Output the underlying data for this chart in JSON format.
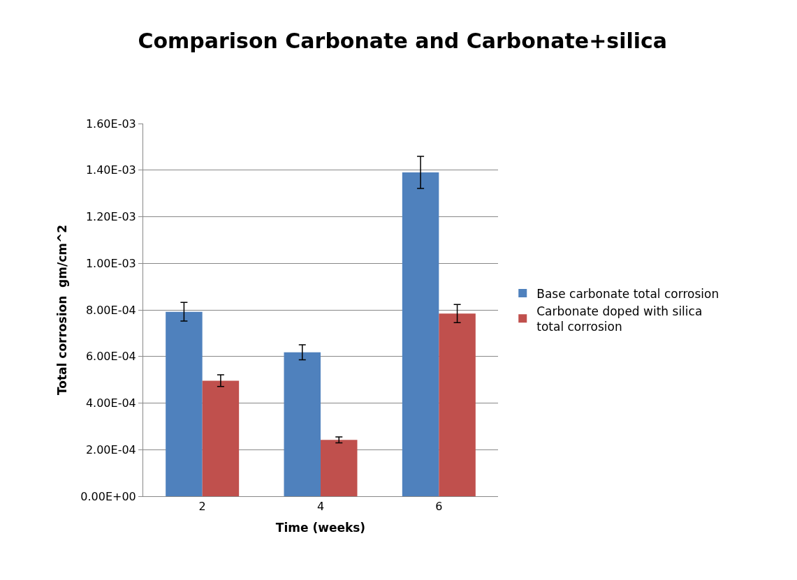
{
  "chart_data": {
    "type": "bar",
    "title": "Comparison Carbonate and Carbonate+silica",
    "xlabel": "Time (weeks)",
    "ylabel": "Total corrosion  gm/cm^2",
    "categories": [
      "2",
      "4",
      "6"
    ],
    "series": [
      {
        "name": "Base carbonate total corrosion",
        "color": "#4f81bd",
        "values": [
          0.000792,
          0.000618,
          0.00139
        ],
        "errors": [
          4e-05,
          3.2e-05,
          6.9e-05
        ]
      },
      {
        "name": "Carbonate doped with silica total corrosion",
        "color": "#c0504d",
        "values": [
          0.000496,
          0.000242,
          0.000784
        ],
        "errors": [
          2.5e-05,
          1.3e-05,
          3.9e-05
        ]
      }
    ],
    "ylim": [
      0,
      0.0016
    ],
    "yticks": [
      {
        "value": 0,
        "label": "0.00E+00"
      },
      {
        "value": 0.0002,
        "label": "2.00E-04"
      },
      {
        "value": 0.0004,
        "label": "4.00E-04"
      },
      {
        "value": 0.0006,
        "label": "6.00E-04"
      },
      {
        "value": 0.0008,
        "label": "8.00E-04"
      },
      {
        "value": 0.001,
        "label": "1.00E-03"
      },
      {
        "value": 0.0012,
        "label": "1.20E-03"
      },
      {
        "value": 0.0014,
        "label": "1.40E-03"
      },
      {
        "value": 0.0016,
        "label": "1.60E-03"
      }
    ],
    "grid": "y",
    "legend": "right"
  }
}
